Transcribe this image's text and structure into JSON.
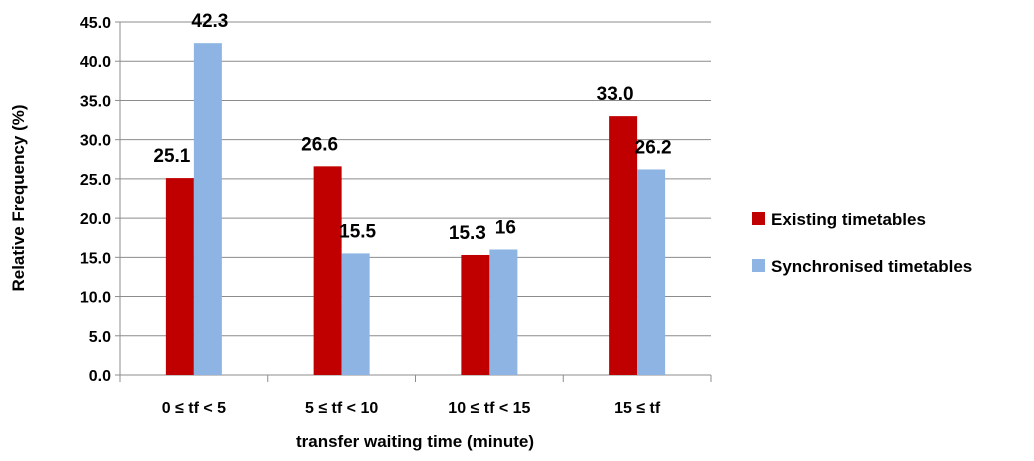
{
  "chart_data": {
    "type": "bar",
    "categories": [
      "0 ≤  tf < 5",
      "5 ≤  tf < 10",
      "10 ≤  tf < 15",
      "15 ≤  tf"
    ],
    "series": [
      {
        "name": "Existing timetables",
        "values": [
          25.1,
          26.6,
          15.3,
          33.0
        ],
        "labels": [
          "25.1",
          "26.6",
          "15.3",
          "33.0"
        ],
        "color": "#c00000"
      },
      {
        "name": "Synchronised timetables",
        "values": [
          42.3,
          15.5,
          16,
          26.2
        ],
        "labels": [
          "42.3",
          "15.5",
          "16",
          "26.2"
        ],
        "color": "#8db4e2"
      }
    ],
    "xlabel": "transfer waiting time (minute)",
    "ylabel": "Relative Frequency (%)",
    "ylim": [
      0,
      45
    ],
    "yticks": [
      "0.0",
      "5.0",
      "10.0",
      "15.0",
      "20.0",
      "25.0",
      "30.0",
      "35.0",
      "40.0",
      "45.0"
    ],
    "grid": true,
    "legend_position": "right"
  }
}
